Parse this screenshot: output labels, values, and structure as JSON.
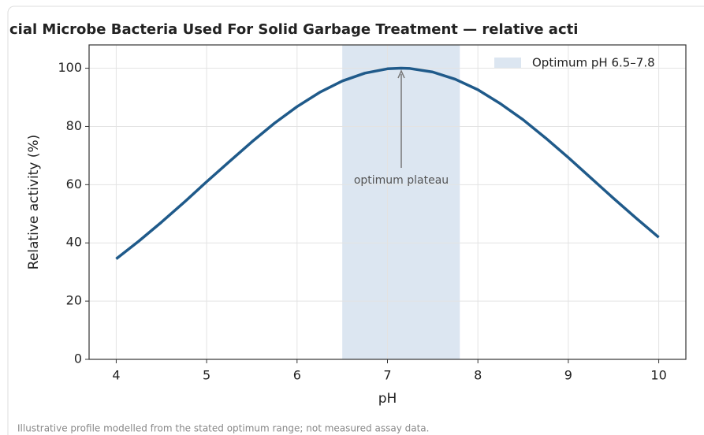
{
  "chart_data": {
    "type": "line",
    "title": "cial Microbe Bacteria Used For Solid Garbage Treatment — relative acti",
    "x_label": "pH",
    "y_label": "Relative activity (%)",
    "footnote": "Illustrative profile modelled from the stated optimum range; not measured assay data.",
    "annotation": "optimum plateau",
    "band": {
      "name": "Optimum pH 6.5–7.8",
      "range": [
        6.5,
        7.8
      ],
      "color": "#dce6f1"
    },
    "legend": "upper right",
    "grid": true,
    "x": [
      4,
      4.25,
      4.5,
      4.75,
      5,
      5.25,
      5.5,
      5.75,
      6,
      6.25,
      6.5,
      6.75,
      7,
      7.15,
      7.25,
      7.5,
      7.75,
      8,
      8.25,
      8.5,
      8.75,
      9,
      9.25,
      9.5,
      9.75,
      10
    ],
    "series": [
      {
        "color": "#1f5a8a",
        "values": [
          34.5,
          40.6,
          47.1,
          53.9,
          61.0,
          67.9,
          74.7,
          81.1,
          86.8,
          91.7,
          95.6,
          98.3,
          99.8,
          100,
          99.9,
          98.7,
          96.2,
          92.6,
          87.8,
          82.3,
          76.0,
          69.3,
          62.3,
          55.3,
          48.5,
          41.9
        ]
      }
    ],
    "xlim": [
      3.7,
      10.3
    ],
    "xticks": [
      4,
      5,
      6,
      7,
      8,
      9,
      10
    ],
    "ylim": [
      0,
      108
    ],
    "yticks": [
      0,
      20,
      40,
      60,
      80,
      100
    ]
  }
}
